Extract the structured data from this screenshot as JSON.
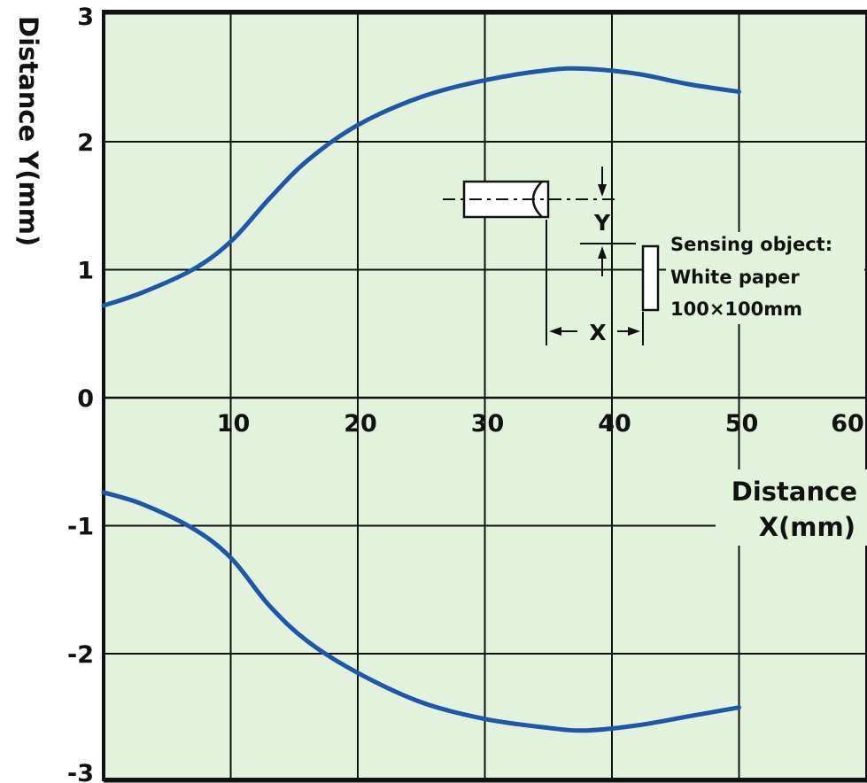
{
  "chart_data": {
    "type": "line",
    "xlabel_line1": "Distance",
    "xlabel_line2": "X(mm)",
    "ylabel": "Distance Y(mm)",
    "xlim": [
      0,
      60
    ],
    "ylim": [
      -3,
      3
    ],
    "x_ticks": [
      {
        "value": 10,
        "label": "10"
      },
      {
        "value": 20,
        "label": "20"
      },
      {
        "value": 30,
        "label": "30"
      },
      {
        "value": 40,
        "label": "40"
      },
      {
        "value": 50,
        "label": "50"
      },
      {
        "value": 60,
        "label": "60"
      }
    ],
    "y_ticks": [
      {
        "value": 3,
        "label": "3"
      },
      {
        "value": 2,
        "label": "2"
      },
      {
        "value": 1,
        "label": "1"
      },
      {
        "value": 0,
        "label": "0"
      },
      {
        "value": -1,
        "label": "-1"
      },
      {
        "value": -2,
        "label": "-2"
      },
      {
        "value": -3,
        "label": "-3"
      }
    ],
    "grid": true,
    "series": [
      {
        "values": [
          {
            "x": 0,
            "y": 0.72
          },
          {
            "x": 3,
            "y": 0.82
          },
          {
            "x": 7,
            "y": 1.0
          },
          {
            "x": 10,
            "y": 1.22
          },
          {
            "x": 13,
            "y": 1.55
          },
          {
            "x": 16,
            "y": 1.85
          },
          {
            "x": 20,
            "y": 2.13
          },
          {
            "x": 25,
            "y": 2.35
          },
          {
            "x": 30,
            "y": 2.48
          },
          {
            "x": 35,
            "y": 2.56
          },
          {
            "x": 38,
            "y": 2.57
          },
          {
            "x": 42,
            "y": 2.53
          },
          {
            "x": 46,
            "y": 2.45
          },
          {
            "x": 50,
            "y": 2.39
          }
        ]
      },
      {
        "values": [
          {
            "x": 0,
            "y": -0.74
          },
          {
            "x": 3,
            "y": -0.83
          },
          {
            "x": 7,
            "y": -1.02
          },
          {
            "x": 10,
            "y": -1.25
          },
          {
            "x": 13,
            "y": -1.62
          },
          {
            "x": 16,
            "y": -1.9
          },
          {
            "x": 20,
            "y": -2.15
          },
          {
            "x": 25,
            "y": -2.38
          },
          {
            "x": 30,
            "y": -2.51
          },
          {
            "x": 35,
            "y": -2.58
          },
          {
            "x": 38,
            "y": -2.6
          },
          {
            "x": 42,
            "y": -2.56
          },
          {
            "x": 46,
            "y": -2.49
          },
          {
            "x": 50,
            "y": -2.42
          }
        ]
      }
    ],
    "colors": {
      "plot_background": "#e3f2dd",
      "curve": "#1d57a8",
      "grid": "#111111"
    },
    "inset": {
      "sensing_label": "Sensing object:",
      "paper_label": "White paper",
      "size_label": "100×100mm",
      "y_dim_label": "Y",
      "x_dim_label": "X"
    }
  }
}
